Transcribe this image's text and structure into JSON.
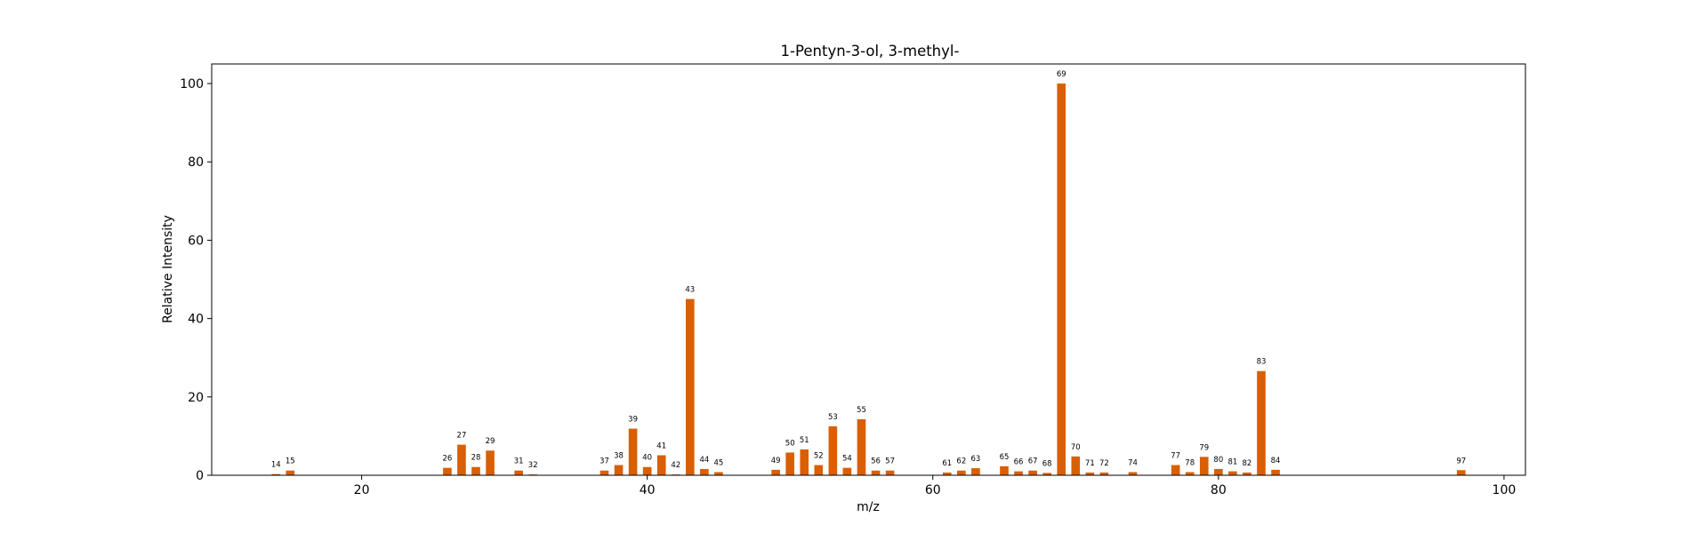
{
  "chart_data": {
    "type": "bar",
    "title": "1-Pentyn-3-ol, 3-methyl-",
    "xlabel": "m/z",
    "ylabel": "Relative Intensity",
    "xlim": [
      9.5,
      101.5
    ],
    "ylim": [
      0,
      105
    ],
    "xticks": [
      20,
      40,
      60,
      80,
      100
    ],
    "yticks": [
      0,
      20,
      40,
      60,
      80,
      100
    ],
    "bar_color": "#d95f02",
    "grid": false,
    "legend": "none",
    "x": [
      14,
      15,
      26,
      27,
      28,
      29,
      31,
      32,
      37,
      38,
      39,
      40,
      41,
      42,
      43,
      44,
      45,
      49,
      50,
      51,
      52,
      53,
      54,
      55,
      56,
      57,
      61,
      62,
      63,
      65,
      66,
      67,
      68,
      69,
      70,
      71,
      72,
      74,
      77,
      78,
      79,
      80,
      81,
      82,
      83,
      84,
      97
    ],
    "values": [
      0.3,
      1.2,
      1.9,
      7.8,
      2.1,
      6.3,
      1.2,
      0.2,
      1.2,
      2.6,
      11.9,
      2.1,
      5.1,
      0.2,
      45.0,
      1.6,
      0.8,
      1.4,
      5.8,
      6.6,
      2.6,
      12.5,
      1.9,
      14.3,
      1.2,
      1.2,
      0.7,
      1.2,
      1.8,
      2.3,
      1.0,
      1.2,
      0.6,
      100.0,
      4.8,
      0.7,
      0.7,
      0.8,
      2.6,
      0.8,
      4.7,
      1.6,
      1.0,
      0.7,
      26.6,
      1.4,
      1.3
    ]
  }
}
